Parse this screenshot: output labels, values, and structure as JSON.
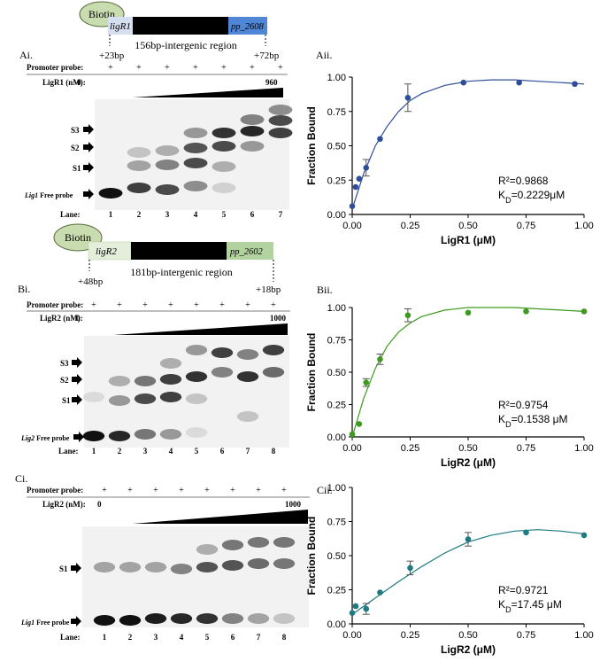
{
  "panels": {
    "ai": {
      "label": "Ai.",
      "biotin": "Biotin",
      "gene_left": "ligR1",
      "gene_right": "pp_2608",
      "region_text": "156bp-intergenic region",
      "pos_left": "+23bp",
      "pos_right": "+72bp",
      "probe_label": "Promoter probe:",
      "protein_label": "LigR1 (nM):",
      "conc_min": "0",
      "conc_max": "960",
      "bands": [
        "S3",
        "S2",
        "S1"
      ],
      "free_probe_italic": "Lig1",
      "free_probe_text": " Free probe",
      "lane_label": "Lane:",
      "lanes": [
        "1",
        "2",
        "3",
        "4",
        "5",
        "6",
        "7"
      ]
    },
    "bi": {
      "label": "Bi.",
      "biotin": "Biotin",
      "gene_left": "ligR2",
      "gene_right": "pp_2602",
      "region_text": "181bp-intergenic region",
      "pos_left": "+48bp",
      "pos_right": "+18bp",
      "probe_label": "Promoter probe:",
      "protein_label": "LigR2 (nM):",
      "conc_min": "0",
      "conc_max": "1000",
      "bands": [
        "S3",
        "S2",
        "S1"
      ],
      "free_probe_italic": "Lig2",
      "free_probe_text": " Free probe",
      "lane_label": "Lane:",
      "lanes": [
        "1",
        "2",
        "3",
        "4",
        "5",
        "6",
        "7",
        "8"
      ]
    },
    "ci": {
      "label": "Ci.",
      "probe_label": "Promoter probe:",
      "protein_label": "LigR2 (nM):",
      "conc_min": "0",
      "conc_max": "1000",
      "bands": [
        "S1"
      ],
      "free_probe_italic": "Lig1",
      "free_probe_text": " Free probe",
      "lane_label": "Lane:",
      "lanes": [
        "1",
        "2",
        "3",
        "4",
        "5",
        "6",
        "7",
        "8"
      ]
    }
  },
  "plus_sign": "+",
  "chart_data": [
    {
      "panel": "Aii.",
      "type": "scatter",
      "xlabel": "LigR1 (μM)",
      "ylabel": "Fraction Bound",
      "xlim": [
        0,
        1
      ],
      "ylim": [
        0,
        1
      ],
      "xticks": [
        "0.00",
        "0.25",
        "0.50",
        "0.75",
        "1.00"
      ],
      "yticks": [
        "0.00",
        "0.25",
        "0.50",
        "0.75",
        "1.00"
      ],
      "color": "#2e4d9a",
      "r2_text": "R²=0.9868",
      "kd_text": "KD=0.2229μM",
      "points": [
        {
          "x": 0,
          "y": 0.06
        },
        {
          "x": 0.015,
          "y": 0.2
        },
        {
          "x": 0.03,
          "y": 0.26
        },
        {
          "x": 0.06,
          "y": 0.34,
          "err": 0.06
        },
        {
          "x": 0.12,
          "y": 0.55
        },
        {
          "x": 0.24,
          "y": 0.85,
          "err": 0.1
        },
        {
          "x": 0.48,
          "y": 0.96
        },
        {
          "x": 0.72,
          "y": 0.96
        },
        {
          "x": 0.96,
          "y": 0.95
        }
      ],
      "fit": [
        [
          0,
          0.04
        ],
        [
          0.05,
          0.3
        ],
        [
          0.1,
          0.5
        ],
        [
          0.15,
          0.64
        ],
        [
          0.2,
          0.75
        ],
        [
          0.25,
          0.83
        ],
        [
          0.3,
          0.88
        ],
        [
          0.4,
          0.94
        ],
        [
          0.5,
          0.97
        ],
        [
          0.6,
          0.98
        ],
        [
          0.7,
          0.98
        ],
        [
          0.8,
          0.97
        ],
        [
          0.9,
          0.96
        ],
        [
          1.0,
          0.95
        ]
      ]
    },
    {
      "panel": "Bii.",
      "type": "scatter",
      "xlabel": "LigR2 (μM)",
      "ylabel": "Fraction Bound",
      "xlim": [
        0,
        1
      ],
      "ylim": [
        0,
        1
      ],
      "xticks": [
        "0.00",
        "0.25",
        "0.50",
        "0.75",
        "1.00"
      ],
      "yticks": [
        "0.00",
        "0.25",
        "0.50",
        "0.75",
        "1.00"
      ],
      "color": "#3d9a1e",
      "r2_text": "R²=0.9754",
      "kd_text": "KD=0.1538 μM",
      "points": [
        {
          "x": 0,
          "y": 0.02
        },
        {
          "x": 0.03,
          "y": 0.1
        },
        {
          "x": 0.06,
          "y": 0.42,
          "err": 0.03
        },
        {
          "x": 0.12,
          "y": 0.6,
          "err": 0.04
        },
        {
          "x": 0.24,
          "y": 0.94,
          "err": 0.05
        },
        {
          "x": 0.5,
          "y": 0.96
        },
        {
          "x": 0.75,
          "y": 0.97
        },
        {
          "x": 1.0,
          "y": 0.97
        }
      ],
      "fit": [
        [
          0,
          0.0
        ],
        [
          0.05,
          0.3
        ],
        [
          0.1,
          0.53
        ],
        [
          0.15,
          0.7
        ],
        [
          0.2,
          0.81
        ],
        [
          0.25,
          0.88
        ],
        [
          0.3,
          0.93
        ],
        [
          0.4,
          0.98
        ],
        [
          0.5,
          1.0
        ],
        [
          0.6,
          1.0
        ],
        [
          0.7,
          1.0
        ],
        [
          0.8,
          0.99
        ],
        [
          0.9,
          0.98
        ],
        [
          1.0,
          0.97
        ]
      ]
    },
    {
      "panel": "Cii.",
      "type": "scatter",
      "xlabel": "LigR2 (μM)",
      "ylabel": "Fraction Bound",
      "xlim": [
        0,
        1
      ],
      "ylim": [
        0,
        1
      ],
      "xticks": [
        "0.00",
        "0.25",
        "0.50",
        "0.75",
        "1.00"
      ],
      "yticks": [
        "0.00",
        "0.25",
        "0.50",
        "0.75",
        "1.00"
      ],
      "color": "#1d7a82",
      "r2_text": "R²=0.9721",
      "kd_text": "KD=17.45 μM",
      "points": [
        {
          "x": 0,
          "y": 0.08
        },
        {
          "x": 0.015,
          "y": 0.13
        },
        {
          "x": 0.06,
          "y": 0.11,
          "err": 0.04
        },
        {
          "x": 0.12,
          "y": 0.23
        },
        {
          "x": 0.25,
          "y": 0.41,
          "err": 0.05
        },
        {
          "x": 0.5,
          "y": 0.62,
          "err": 0.05
        },
        {
          "x": 0.75,
          "y": 0.67
        },
        {
          "x": 1.0,
          "y": 0.65
        }
      ],
      "fit": [
        [
          0,
          0.07
        ],
        [
          0.1,
          0.19
        ],
        [
          0.2,
          0.31
        ],
        [
          0.3,
          0.42
        ],
        [
          0.4,
          0.52
        ],
        [
          0.5,
          0.6
        ],
        [
          0.6,
          0.65
        ],
        [
          0.7,
          0.68
        ],
        [
          0.8,
          0.69
        ],
        [
          0.9,
          0.68
        ],
        [
          1.0,
          0.66
        ]
      ]
    }
  ]
}
